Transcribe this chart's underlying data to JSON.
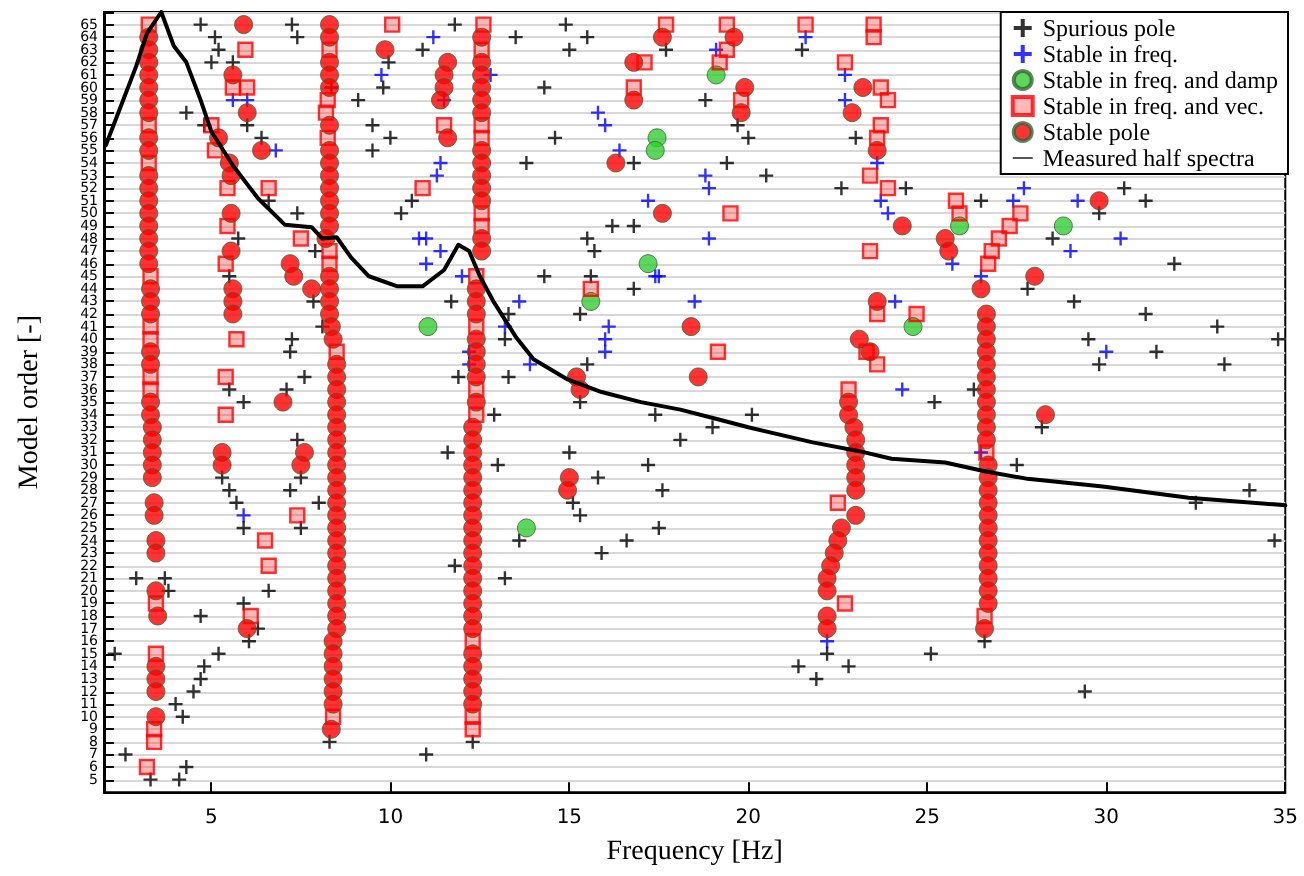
{
  "chart_data": {
    "type": "scatter",
    "xlabel": "Frequency [Hz]",
    "ylabel": "Model order [-]",
    "xlim": [
      2,
      35
    ],
    "xticks": [
      5,
      10,
      15,
      20,
      25,
      30,
      35
    ],
    "ylim": [
      4,
      66
    ],
    "yticks": [
      5,
      6,
      7,
      8,
      9,
      10,
      11,
      12,
      13,
      14,
      15,
      16,
      17,
      18,
      19,
      20,
      21,
      22,
      23,
      24,
      25,
      26,
      27,
      28,
      29,
      30,
      31,
      32,
      33,
      34,
      35,
      36,
      37,
      38,
      39,
      40,
      41,
      42,
      43,
      44,
      45,
      46,
      47,
      48,
      49,
      50,
      51,
      52,
      53,
      54,
      55,
      56,
      57,
      58,
      59,
      60,
      61,
      62,
      63,
      64,
      65
    ],
    "grid": "y",
    "legend": "top right",
    "series": [
      {
        "name": "Spurious pole",
        "marker": "cross",
        "color": "#000000",
        "x": [
          4.7,
          7.25,
          11.8,
          14.9,
          5.1,
          7.4,
          13.5,
          15.5,
          5.2,
          10.9,
          15.0,
          5.0,
          5.6,
          9.95,
          8.35,
          9.8,
          14.3,
          9.1,
          4.3,
          9.5,
          4.8,
          6.0,
          10.0,
          6.4,
          9.5,
          14.6,
          13.8,
          16.8,
          6.6,
          10.3,
          10.6,
          7.4,
          16.2,
          16.8,
          15.5,
          5.75,
          7.9,
          15.7,
          5.5,
          14.3,
          15.6,
          16.8,
          7.85,
          11.7,
          13.3,
          15.3,
          8.1,
          7.25,
          13.2,
          7.2,
          15.5,
          11.9,
          7.6,
          13.3,
          5.5,
          7.1,
          12.9,
          17.4,
          5.9,
          15.3,
          7.4,
          11.6,
          13.0,
          15.0,
          17.2,
          5.3,
          7.5,
          15.8,
          5.5,
          7.2,
          5.7,
          8.0,
          15.1,
          5.9,
          7.5,
          15.3,
          13.6,
          16.6,
          15.9,
          11.8,
          2.9,
          3.7,
          13.2,
          6.6,
          3.8,
          5.9,
          4.7,
          6.3,
          6.05,
          2.3,
          5.2,
          4.8,
          4.7,
          4.5,
          4.0,
          4.2,
          2.6,
          11.0,
          4.3,
          4.1,
          3.3,
          8.3,
          12.3,
          17.7,
          21.5,
          18.8,
          19.7,
          23.0,
          20.0,
          19.4,
          20.5,
          22.6,
          24.4,
          26.5,
          31.1,
          29.8,
          30.5,
          28.5,
          31.9,
          27.8,
          29.1,
          31.1,
          33.1,
          34.8,
          29.5,
          29.8,
          31.4,
          33.3,
          26.3,
          25.2,
          20.1,
          18.1,
          19.0,
          27.5,
          28.2,
          34.0,
          32.5,
          34.7,
          25.1,
          29.4,
          17.5,
          17.6,
          22.2,
          21.4,
          22.8,
          21.9,
          26.6
        ],
        "values": [
          65,
          65,
          65,
          65,
          64,
          64,
          64,
          64,
          63,
          63,
          63,
          62,
          62,
          62,
          60,
          60,
          60,
          59,
          58,
          57,
          57,
          57,
          56,
          56,
          55,
          56,
          54,
          54,
          51,
          50,
          51,
          50,
          49,
          49,
          48,
          48,
          47,
          47,
          45,
          45,
          45,
          44,
          43,
          43,
          42,
          42,
          41,
          40,
          40,
          39,
          38,
          37,
          37,
          37,
          36,
          36,
          34,
          34,
          35,
          35,
          32,
          31,
          30,
          31,
          30,
          29,
          29,
          29,
          28,
          28,
          27,
          27,
          27,
          25,
          25,
          26,
          24,
          24,
          23,
          22,
          21,
          21,
          21,
          20,
          20,
          19,
          18,
          17,
          16,
          15,
          15,
          14,
          13,
          12,
          11,
          10,
          7,
          7,
          6,
          5,
          5,
          8,
          8,
          63,
          63,
          59,
          57,
          56,
          56,
          54,
          53,
          52,
          52,
          51,
          51,
          50,
          52,
          48,
          46,
          44,
          43,
          42,
          41,
          40,
          40,
          38,
          39,
          38,
          36,
          35,
          34,
          32,
          33,
          30,
          33,
          28,
          27,
          24,
          15,
          12,
          25,
          28,
          15,
          14,
          14,
          13,
          16
        ]
      },
      {
        "name": "Stable in freq.",
        "marker": "cross",
        "color": "#0000ff",
        "x": [
          9.75,
          12.8,
          11.2,
          11.5,
          11.3,
          11.4,
          10.8,
          11.0,
          11.4,
          11.0,
          12.0,
          13.6,
          13.2,
          12.2,
          12.2,
          13.9,
          5.6,
          6.0,
          6.8,
          15.8,
          16.0,
          16.4,
          17.2,
          16.1,
          16.0,
          16.0,
          17.5,
          19.1,
          21.6,
          22.7,
          22.7,
          23.6,
          23.7,
          23.9,
          18.8,
          18.9,
          18.9,
          17.4,
          18.5,
          25.7,
          26.5,
          24.1,
          24.3,
          27.7,
          27.4,
          29.2,
          29.0,
          30.4,
          30.0,
          5.9,
          22.2,
          26.5
        ],
        "values": [
          61,
          61,
          64,
          59,
          53,
          54,
          48,
          48,
          47,
          46,
          45,
          43,
          41,
          39,
          38,
          38,
          59,
          59,
          55,
          58,
          57,
          55,
          51,
          41,
          40,
          39,
          45,
          63,
          64,
          61,
          59,
          54,
          51,
          50,
          53,
          52,
          48,
          45,
          43,
          46,
          45,
          43,
          36,
          52,
          51,
          51,
          47,
          48,
          39,
          26,
          16,
          31
        ]
      },
      {
        "name": "Stable in freq. and damp",
        "marker": "circle",
        "color": "#33cc33",
        "x": [
          11.05,
          17.45,
          17.4,
          17.2,
          15.6,
          13.8,
          19.1,
          25.9,
          24.6,
          28.8
        ],
        "values": [
          41,
          56,
          55,
          46,
          43,
          25,
          61,
          49,
          41,
          49
        ]
      },
      {
        "name": "Stable in freq. and vec.",
        "marker": "square",
        "color": "#ff0000",
        "x": [
          3.25,
          3.25,
          3.25,
          3.3,
          3.3,
          3.3,
          3.3,
          3.3,
          3.45,
          3.45,
          3.4,
          3.4,
          3.2,
          5.95,
          5.6,
          6.0,
          5.0,
          5.1,
          5.45,
          5.45,
          5.4,
          5.7,
          5.4,
          5.4,
          6.5,
          6.6,
          6.1,
          6.6,
          7.4,
          7.5,
          8.3,
          8.25,
          8.2,
          8.25,
          8.3,
          8.3,
          8.5,
          8.4,
          12.6,
          12.55,
          12.55,
          12.55,
          12.55,
          12.55,
          12.4,
          12.4,
          12.4,
          12.4,
          12.3,
          12.3,
          12.3,
          10.05,
          11.5,
          10.9,
          16.8,
          15.6,
          17.1,
          17.7,
          19.4,
          21.6,
          23.5,
          23.5,
          19.4,
          19.2,
          22.7,
          19.8,
          23.7,
          23.9,
          23.7,
          23.6,
          23.4,
          23.9,
          25.8,
          25.9,
          27.6,
          27.3,
          27.0,
          26.8,
          26.7,
          23.4,
          19.5,
          19.15,
          23.6,
          23.3,
          24.7,
          23.6,
          22.8,
          22.7,
          22.5,
          26.6,
          26.65
        ],
        "values": [
          65,
          57,
          54,
          45,
          41,
          40,
          37,
          36,
          19,
          15,
          9,
          8,
          6,
          63,
          60,
          60,
          57,
          55,
          52,
          49,
          46,
          40,
          37,
          34,
          24,
          22,
          18,
          52,
          26,
          48,
          63,
          59,
          58,
          56,
          47,
          46,
          39,
          10,
          65,
          63,
          57,
          56,
          50,
          49,
          45,
          41,
          36,
          34,
          16,
          10,
          9,
          65,
          57,
          52,
          60,
          44,
          62,
          65,
          65,
          65,
          65,
          64,
          63,
          62,
          62,
          59,
          60,
          59,
          57,
          56,
          53,
          52,
          51,
          50,
          50,
          49,
          48,
          47,
          46,
          47,
          50,
          39,
          38,
          39,
          42,
          42,
          36,
          19,
          27,
          18,
          31
        ]
      },
      {
        "name": "Stable pole",
        "marker": "circle",
        "color": "#ff0000",
        "x": [
          3.25,
          3.25,
          3.25,
          3.25,
          3.25,
          3.25,
          3.25,
          3.25,
          3.25,
          3.25,
          3.25,
          3.25,
          3.25,
          3.25,
          3.25,
          3.25,
          3.25,
          3.3,
          3.3,
          3.3,
          3.3,
          3.3,
          3.3,
          3.3,
          3.35,
          3.35,
          3.35,
          3.35,
          3.35,
          3.4,
          3.4,
          3.45,
          3.45,
          3.45,
          3.5,
          3.45,
          3.45,
          3.45,
          3.45,
          5.9,
          5.6,
          6.0,
          5.2,
          5.5,
          5.55,
          5.55,
          5.55,
          5.6,
          5.6,
          5.6,
          5.3,
          5.3,
          6.0,
          6.4,
          7.3,
          7.8,
          7.0,
          7.6,
          7.5,
          7.2,
          8.3,
          8.3,
          8.3,
          8.3,
          8.3,
          8.3,
          8.3,
          8.3,
          8.3,
          8.3,
          8.3,
          8.3,
          8.3,
          8.2,
          8.3,
          8.3,
          8.3,
          8.3,
          8.35,
          8.4,
          8.5,
          8.5,
          8.5,
          8.5,
          8.5,
          8.5,
          8.5,
          8.5,
          8.5,
          8.5,
          8.5,
          8.5,
          8.5,
          8.5,
          8.5,
          8.5,
          8.5,
          8.5,
          8.5,
          8.5,
          8.5,
          8.5,
          8.4,
          8.4,
          8.4,
          8.4,
          8.4,
          8.4,
          8.35,
          12.55,
          12.55,
          12.55,
          12.55,
          12.55,
          12.55,
          12.55,
          12.55,
          12.55,
          12.55,
          12.55,
          12.55,
          12.55,
          12.4,
          12.4,
          12.4,
          12.4,
          12.4,
          12.4,
          12.4,
          12.4,
          12.3,
          12.3,
          12.3,
          12.3,
          12.3,
          12.3,
          12.3,
          12.3,
          12.3,
          12.3,
          12.3,
          12.3,
          12.3,
          12.3,
          12.3,
          12.3,
          12.3,
          12.3,
          12.3,
          12.3,
          12.3,
          12.3,
          23.2,
          22.9,
          23.6,
          23.4,
          23.1,
          22.8,
          22.8,
          22.95,
          23.0,
          23.0,
          23.0,
          23.0,
          23.0,
          23.0,
          22.6,
          22.5,
          22.4,
          22.3,
          22.2,
          22.2,
          22.2,
          22.2,
          26.5,
          26.65,
          26.65,
          26.65,
          26.65,
          26.65,
          26.65,
          26.65,
          26.65,
          26.65,
          26.65,
          26.65,
          26.7,
          26.7,
          26.7,
          26.7,
          26.7,
          26.7,
          26.7,
          26.7,
          26.7,
          26.7,
          26.7,
          26.7,
          26.6,
          19.6,
          19.9,
          19.8,
          18.4,
          18.6,
          24.3,
          25.5,
          25.6,
          23.6,
          28.0,
          28.3,
          29.8,
          17.6,
          9.85,
          11.6,
          16.8,
          16.8,
          16.3,
          17.6,
          15.2,
          15.3,
          15.0,
          14.95,
          11.5,
          11.5,
          11.4,
          11.6
        ],
        "values": [
          64,
          63,
          62,
          61,
          60,
          59,
          58,
          56,
          55,
          53,
          52,
          51,
          50,
          49,
          48,
          47,
          46,
          44,
          43,
          42,
          39,
          38,
          35,
          34,
          33,
          32,
          31,
          30,
          29,
          27,
          26,
          24,
          23,
          20,
          18,
          14,
          13,
          12,
          10,
          65,
          61,
          58,
          56,
          54,
          53,
          50,
          47,
          44,
          43,
          42,
          31,
          30,
          17,
          55,
          45,
          44,
          35,
          31,
          30,
          46,
          65,
          64,
          62,
          61,
          60,
          57,
          55,
          54,
          53,
          52,
          51,
          50,
          49,
          48,
          45,
          44,
          43,
          42,
          41,
          40,
          38,
          37,
          36,
          35,
          34,
          33,
          32,
          31,
          30,
          29,
          28,
          27,
          26,
          25,
          24,
          23,
          22,
          21,
          20,
          19,
          18,
          17,
          16,
          15,
          14,
          13,
          12,
          11,
          9,
          64,
          62,
          61,
          60,
          59,
          58,
          55,
          54,
          53,
          52,
          51,
          48,
          47,
          44,
          43,
          42,
          40,
          39,
          38,
          37,
          35,
          33,
          32,
          31,
          30,
          29,
          28,
          27,
          26,
          25,
          24,
          23,
          22,
          21,
          20,
          19,
          18,
          17,
          15,
          14,
          13,
          12,
          11,
          60,
          58,
          55,
          39,
          40,
          35,
          34,
          33,
          32,
          31,
          30,
          29,
          28,
          26,
          25,
          24,
          23,
          22,
          21,
          20,
          18,
          17,
          44,
          42,
          41,
          40,
          39,
          38,
          37,
          36,
          35,
          34,
          33,
          32,
          30,
          29,
          28,
          27,
          26,
          25,
          24,
          23,
          22,
          21,
          20,
          19,
          17,
          64,
          60,
          58,
          41,
          37,
          49,
          48,
          47,
          43,
          45,
          34,
          51,
          64,
          63,
          62,
          62,
          59,
          54,
          50,
          37,
          36,
          29,
          28,
          61,
          60,
          59,
          56
        ]
      },
      {
        "name": "Measured half spectra",
        "type": "line",
        "marker": "none",
        "line_style": "solid",
        "color": "#000000",
        "x": [
          2.05,
          2.4,
          2.9,
          3.2,
          3.6,
          3.95,
          4.3,
          4.7,
          5.0,
          5.6,
          6.3,
          7.05,
          7.8,
          8.1,
          8.5,
          8.9,
          9.4,
          10.2,
          10.9,
          11.5,
          11.9,
          12.2,
          12.5,
          12.9,
          13.5,
          14.0,
          14.95,
          15.9,
          17.0,
          18.1,
          19.2,
          20.0,
          21.8,
          23.1,
          24.0,
          25.5,
          26.6,
          27.8,
          29.9,
          32.3,
          35.0
        ],
        "values": [
          55.4,
          58,
          61.7,
          64.3,
          66,
          63.3,
          62,
          59,
          56.5,
          53.8,
          51.2,
          49.1,
          48.9,
          48,
          48.1,
          46.5,
          45,
          44.2,
          44.2,
          45.5,
          47.5,
          47,
          45,
          42.9,
          40.2,
          38.4,
          36.8,
          35.8,
          35,
          34.4,
          33.6,
          33,
          31.8,
          31.1,
          30.5,
          30.2,
          29.5,
          28.9,
          28.3,
          27.4,
          26.8
        ]
      }
    ]
  }
}
